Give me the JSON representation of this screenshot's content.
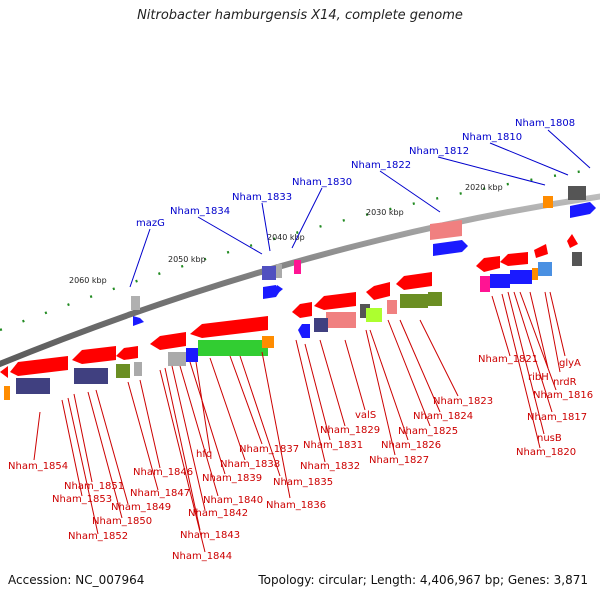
{
  "title": "Nitrobacter hamburgensis X14, complete genome",
  "footer": {
    "accession": "Accession: NC_007964",
    "topology": "Topology: circular; Length: 4,406,967 bp; Genes: 3,871"
  },
  "colors": {
    "backbone": "#808080",
    "forward_gene": "#ff0000",
    "reverse_gene": "#ff0000",
    "label_blue": "#0000cc",
    "label_red": "#cc0000",
    "tick": "#228b22"
  },
  "scale_labels": [
    "2020 kbp",
    "2030 kbp",
    "2040 kbp",
    "2050 kbp",
    "2060 kbp"
  ],
  "top_genes": [
    "Nham_1808",
    "Nham_1810",
    "Nham_1812",
    "Nham_1822",
    "Nham_1830",
    "Nham_1833",
    "Nham_1834",
    "mazG"
  ],
  "bottom_genes": [
    "glyA",
    "nrdR",
    "ribH",
    "Nham_1821",
    "Nham_1816",
    "Nham_1817",
    "nusB",
    "Nham_1820",
    "Nham_1823",
    "Nham_1824",
    "Nham_1825",
    "Nham_1826",
    "Nham_1827",
    "valS",
    "Nham_1829",
    "Nham_1831",
    "Nham_1832",
    "Nham_1836",
    "Nham_1835",
    "Nham_1837",
    "Nham_1838",
    "hfq",
    "Nham_1839",
    "Nham_1840",
    "Nham_1842",
    "Nham_1843",
    "Nham_1844",
    "Nham_1846",
    "Nham_1847",
    "Nham_1849",
    "Nham_1850",
    "Nham_1851",
    "Nham_1852",
    "Nham_1853",
    "Nham_1854"
  ]
}
